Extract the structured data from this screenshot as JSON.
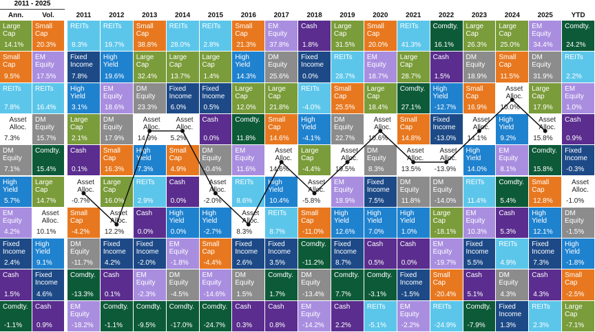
{
  "header": {
    "period": "2011 - 2025"
  },
  "colors": {
    "Large Cap": "#7a9c3a",
    "Small Cap": "#e8781f",
    "EM Equity": "#a98ee0",
    "DM Equity": "#8c8c8c",
    "REITs": "#5cc6ea",
    "Fixed Income": "#1d4a87",
    "High Yield": "#1f82cf",
    "Cash": "#5a2d8e",
    "Comdty.": "#0d5a38",
    "Asset Alloc.": "#ffffff"
  },
  "highlight": "Asset Alloc.",
  "columns": [
    {
      "title": "Ann.",
      "cells": [
        [
          "Large Cap",
          "14.1%"
        ],
        [
          "Small Cap",
          "9.5%"
        ],
        [
          "REITs",
          "7.8%"
        ],
        [
          "Asset Alloc.",
          "7.3%"
        ],
        [
          "DM Equity",
          "7.1%"
        ],
        [
          "High Yield",
          "5.7%"
        ],
        [
          "EM Equity",
          "4.2%"
        ],
        [
          "Fixed Income",
          "2.4%"
        ],
        [
          "Cash",
          "1.5%"
        ],
        [
          "Comdty.",
          "-1.1%"
        ]
      ]
    },
    {
      "title": "Vol.",
      "cells": [
        [
          "Small Cap",
          "20.3%"
        ],
        [
          "EM Equity",
          "17.5%"
        ],
        [
          "REITs",
          "16.4%"
        ],
        [
          "DM Equity",
          "15.7%"
        ],
        [
          "Comdty.",
          "15.4%"
        ],
        [
          "Large Cap",
          "14.7%"
        ],
        [
          "Asset Alloc.",
          "10.1%"
        ],
        [
          "High Yield",
          "9.1%"
        ],
        [
          "Fixed Income",
          "4.6%"
        ],
        [
          "Cash",
          "0.9%"
        ]
      ]
    },
    {
      "title": "2011",
      "cells": [
        [
          "REITs",
          "8.3%"
        ],
        [
          "Fixed Income",
          "7.8%"
        ],
        [
          "High Yield",
          "3.1%"
        ],
        [
          "Large Cap",
          "2.1%"
        ],
        [
          "Cash",
          "0.1%"
        ],
        [
          "Asset Alloc.",
          "-0.7%"
        ],
        [
          "Small Cap",
          "-4.2%"
        ],
        [
          "DM Equity",
          "-11.7%"
        ],
        [
          "Comdty.",
          "-13.3%"
        ],
        [
          "EM Equity",
          "-18.2%"
        ]
      ]
    },
    {
      "title": "2012",
      "cells": [
        [
          "REITs",
          "19.7%"
        ],
        [
          "High Yield",
          "19.6%"
        ],
        [
          "EM Equity",
          "18.6%"
        ],
        [
          "DM Equity",
          "17.9%"
        ],
        [
          "Small Cap",
          "16.3%"
        ],
        [
          "Large Cap",
          "16.0%"
        ],
        [
          "Asset Alloc.",
          "12.2%"
        ],
        [
          "Fixed Income",
          "4.2%"
        ],
        [
          "Cash",
          "0.1%"
        ],
        [
          "Comdty.",
          "-1.1%"
        ]
      ]
    },
    {
      "title": "2013",
      "cells": [
        [
          "Small Cap",
          "38.8%"
        ],
        [
          "Large Cap",
          "32.4%"
        ],
        [
          "DM Equity",
          "23.3%"
        ],
        [
          "Asset Alloc.",
          "14.9%"
        ],
        [
          "High Yield",
          "7.3%"
        ],
        [
          "REITs",
          "2.9%"
        ],
        [
          "Cash",
          "0.0%"
        ],
        [
          "Fixed Income",
          "-2.0%"
        ],
        [
          "EM Equity",
          "-2.3%"
        ],
        [
          "Comdty.",
          "-9.5%"
        ]
      ]
    },
    {
      "title": "2014",
      "cells": [
        [
          "REITs",
          "28.0%"
        ],
        [
          "Large Cap",
          "13.7%"
        ],
        [
          "Fixed Income",
          "6.0%"
        ],
        [
          "Asset Alloc.",
          "5.2%"
        ],
        [
          "Small Cap",
          "4.9%"
        ],
        [
          "Cash",
          "0.0%"
        ],
        [
          "High Yield",
          "0.0%"
        ],
        [
          "EM Equity",
          "-1.8%"
        ],
        [
          "DM Equity",
          "-4.5%"
        ],
        [
          "Comdty.",
          "-17.0%"
        ]
      ]
    },
    {
      "title": "2015",
      "cells": [
        [
          "REITs",
          "2.8%"
        ],
        [
          "Large Cap",
          "1.4%"
        ],
        [
          "Fixed Income",
          "0.5%"
        ],
        [
          "Cash",
          "0.0%"
        ],
        [
          "DM Equity",
          "-0.4%"
        ],
        [
          "Asset Alloc.",
          "-2.0%"
        ],
        [
          "High Yield",
          "-2.7%"
        ],
        [
          "Small Cap",
          "-4.4%"
        ],
        [
          "EM Equity",
          "-14.6%"
        ],
        [
          "Comdty.",
          "-24.7%"
        ]
      ]
    },
    {
      "title": "2016",
      "cells": [
        [
          "Small Cap",
          "21.3%"
        ],
        [
          "High Yield",
          "14.3%"
        ],
        [
          "Large Cap",
          "12.0%"
        ],
        [
          "Comdty.",
          "11.8%"
        ],
        [
          "EM Equity",
          "11.6%"
        ],
        [
          "REITs",
          "8.6%"
        ],
        [
          "Asset Alloc.",
          "8.3%"
        ],
        [
          "Fixed Income",
          "2.6%"
        ],
        [
          "DM Equity",
          "1.5%"
        ],
        [
          "Cash",
          "0.3%"
        ]
      ]
    },
    {
      "title": "2017",
      "cells": [
        [
          "EM Equity",
          "37.8%"
        ],
        [
          "DM Equity",
          "25.6%"
        ],
        [
          "Large Cap",
          "21.8%"
        ],
        [
          "Small Cap",
          "14.6%"
        ],
        [
          "Asset Alloc.",
          "14.6%"
        ],
        [
          "High Yield",
          "10.4%"
        ],
        [
          "REITs",
          "8.7%"
        ],
        [
          "Fixed Income",
          "3.5%"
        ],
        [
          "Comdty.",
          "1.7%"
        ],
        [
          "Cash",
          "0.8%"
        ]
      ]
    },
    {
      "title": "2018",
      "cells": [
        [
          "Cash",
          "1.8%"
        ],
        [
          "Fixed Income",
          "0.0%"
        ],
        [
          "REITs",
          "-4.0%"
        ],
        [
          "High Yield",
          "-4.1%"
        ],
        [
          "Large Cap",
          "-4.4%"
        ],
        [
          "Asset Alloc.",
          "-5.8%"
        ],
        [
          "Small Cap",
          "-11.0%"
        ],
        [
          "Comdty.",
          "-11.2%"
        ],
        [
          "DM Equity",
          "-13.4%"
        ],
        [
          "EM Equity",
          "-14.2%"
        ]
      ]
    },
    {
      "title": "2019",
      "cells": [
        [
          "Large Cap",
          "31.5%"
        ],
        [
          "REITs",
          "28.7%"
        ],
        [
          "Small Cap",
          "25.5%"
        ],
        [
          "DM Equity",
          "22.7%"
        ],
        [
          "Asset Alloc.",
          "19.5%"
        ],
        [
          "EM Equity",
          "18.9%"
        ],
        [
          "High Yield",
          "12.6%"
        ],
        [
          "Fixed Income",
          "8.7%"
        ],
        [
          "Comdty.",
          "7.7%"
        ],
        [
          "Cash",
          "2.2%"
        ]
      ]
    },
    {
      "title": "2020",
      "cells": [
        [
          "Small Cap",
          "20.0%"
        ],
        [
          "EM Equity",
          "18.7%"
        ],
        [
          "Large Cap",
          "18.4%"
        ],
        [
          "Asset Alloc.",
          "10.6%"
        ],
        [
          "DM Equity",
          "8.3%"
        ],
        [
          "Fixed Income",
          "7.5%"
        ],
        [
          "High Yield",
          "7.0%"
        ],
        [
          "Cash",
          "0.5%"
        ],
        [
          "Comdty.",
          "-3.1%"
        ],
        [
          "REITs",
          "-5.1%"
        ]
      ]
    },
    {
      "title": "2021",
      "cells": [
        [
          "REITs",
          "41.3%"
        ],
        [
          "Large Cap",
          "28.7%"
        ],
        [
          "Comdty.",
          "27.1%"
        ],
        [
          "Small Cap",
          "14.8%"
        ],
        [
          "Asset Alloc.",
          "13.5%"
        ],
        [
          "DM Equity",
          "11.8%"
        ],
        [
          "High Yield",
          "1.0%"
        ],
        [
          "Cash",
          "0.0%"
        ],
        [
          "Fixed Income",
          "-1.5%"
        ],
        [
          "EM Equity",
          "-2.2%"
        ]
      ]
    },
    {
      "title": "2022",
      "cells": [
        [
          "Comdty.",
          "16.1%"
        ],
        [
          "Cash",
          "1.5%"
        ],
        [
          "High Yield",
          "-12.7%"
        ],
        [
          "Fixed Income",
          "-13.0%"
        ],
        [
          "Asset Alloc.",
          "-13.9%"
        ],
        [
          "DM Equity",
          "-14.0%"
        ],
        [
          "Large Cap",
          "-18.1%"
        ],
        [
          "EM Equity",
          "-19.7%"
        ],
        [
          "Small Cap",
          "-20.4%"
        ],
        [
          "REITs",
          "-24.9%"
        ]
      ]
    },
    {
      "title": "2023",
      "cells": [
        [
          "Large Cap",
          "26.3%"
        ],
        [
          "DM Equity",
          "18.9%"
        ],
        [
          "Small Cap",
          "16.9%"
        ],
        [
          "Asset Alloc.",
          "14.1%"
        ],
        [
          "High Yield",
          "14.0%"
        ],
        [
          "REITs",
          "11.4%"
        ],
        [
          "EM Equity",
          "10.3%"
        ],
        [
          "Fixed Income",
          "5.5%"
        ],
        [
          "Cash",
          "5.1%"
        ],
        [
          "Comdty.",
          "-7.9%"
        ]
      ]
    },
    {
      "title": "2024",
      "cells": [
        [
          "Large Cap",
          "25.0%"
        ],
        [
          "Small Cap",
          "11.5%"
        ],
        [
          "Asset Alloc.",
          "10.0%"
        ],
        [
          "High Yield",
          "9.2%"
        ],
        [
          "EM Equity",
          "8.1%"
        ],
        [
          "Comdty.",
          "5.4%"
        ],
        [
          "Cash",
          "5.3%"
        ],
        [
          "REITs",
          "4.9%"
        ],
        [
          "DM Equity",
          "4.3%"
        ],
        [
          "Fixed Income",
          "1.3%"
        ]
      ]
    },
    {
      "title": "2025",
      "cells": [
        [
          "EM Equity",
          "34.4%"
        ],
        [
          "DM Equity",
          "31.9%"
        ],
        [
          "Large Cap",
          "17.9%"
        ],
        [
          "Asset Alloc.",
          "15.8%"
        ],
        [
          "Comdty.",
          "15.8%"
        ],
        [
          "Small Cap",
          "12.8%"
        ],
        [
          "High Yield",
          "12.1%"
        ],
        [
          "Fixed Income",
          "7.3%"
        ],
        [
          "Cash",
          "4.3%"
        ],
        [
          "REITs",
          "2.3%"
        ]
      ]
    },
    {
      "title": "YTD",
      "cells": [
        [
          "Comdty.",
          "24.2%"
        ],
        [
          "REITs",
          "2.2%"
        ],
        [
          "EM Equity",
          "1.0%"
        ],
        [
          "Cash",
          "0.9%"
        ],
        [
          "Fixed Income",
          "-0.3%"
        ],
        [
          "Asset Alloc.",
          "-1.0%"
        ],
        [
          "DM Equity",
          "-1.5%"
        ],
        [
          "High Yield",
          "-1.8%"
        ],
        [
          "Small Cap",
          "-2.5%"
        ],
        [
          "Large Cap",
          "-7.1%"
        ]
      ]
    }
  ]
}
